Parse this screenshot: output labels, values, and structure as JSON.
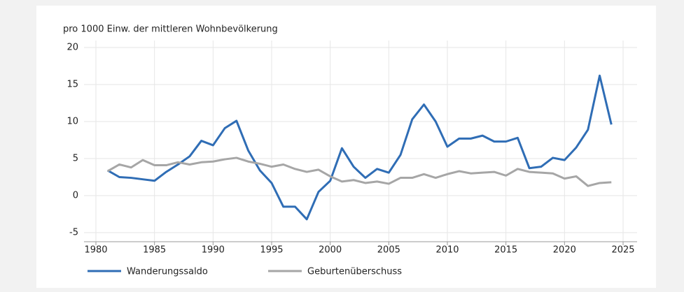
{
  "chart_data": {
    "type": "line",
    "y_label": "pro 1000 Einw. der mittleren Wohnbevölkerung",
    "x": [
      1981,
      1982,
      1983,
      1984,
      1985,
      1986,
      1987,
      1988,
      1989,
      1990,
      1991,
      1992,
      1993,
      1994,
      1995,
      1996,
      1997,
      1998,
      1999,
      2000,
      2001,
      2002,
      2003,
      2004,
      2005,
      2006,
      2007,
      2008,
      2009,
      2010,
      2011,
      2012,
      2013,
      2014,
      2015,
      2016,
      2017,
      2018,
      2019,
      2020,
      2021,
      2022,
      2023,
      2024
    ],
    "series": [
      {
        "name": "Wanderungssaldo",
        "color": "#2f6db5",
        "values": [
          3.4,
          2.5,
          2.4,
          2.2,
          2.0,
          3.2,
          4.2,
          5.3,
          7.4,
          6.8,
          9.1,
          10.1,
          6.1,
          3.4,
          1.7,
          -1.5,
          -1.5,
          -3.2,
          0.5,
          2.0,
          6.4,
          3.9,
          2.4,
          3.6,
          3.1,
          5.5,
          10.3,
          12.3,
          10.0,
          6.6,
          7.7,
          7.7,
          8.1,
          7.3,
          7.3,
          7.8,
          3.7,
          3.9,
          5.1,
          4.8,
          6.5,
          8.9,
          16.2,
          9.6
        ]
      },
      {
        "name": "Geburtenüberschuss",
        "color": "#a6a6a6",
        "values": [
          3.3,
          4.2,
          3.8,
          4.8,
          4.1,
          4.1,
          4.5,
          4.2,
          4.5,
          4.6,
          4.9,
          5.1,
          4.6,
          4.3,
          3.9,
          4.2,
          3.6,
          3.2,
          3.5,
          2.6,
          1.9,
          2.1,
          1.7,
          1.9,
          1.6,
          2.4,
          2.4,
          2.9,
          2.4,
          2.9,
          3.3,
          3.0,
          3.1,
          3.2,
          2.7,
          3.6,
          3.2,
          3.1,
          3.0,
          2.3,
          2.6,
          1.3,
          1.7,
          1.8
        ]
      }
    ],
    "xlim": [
      1980,
      2025
    ],
    "xticks": [
      1980,
      1985,
      1990,
      1995,
      2000,
      2005,
      2010,
      2015,
      2020,
      2025
    ],
    "ylim": [
      -5,
      20
    ],
    "yticks": [
      -5,
      0,
      5,
      10,
      15,
      20
    ],
    "grid": true
  }
}
